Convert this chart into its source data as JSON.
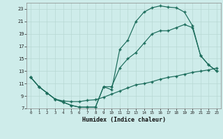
{
  "xlabel": "Humidex (Indice chaleur)",
  "bg_color": "#ceecea",
  "grid_color": "#b8d8d4",
  "line_color": "#1a6b5a",
  "xlim": [
    0,
    23
  ],
  "ylim": [
    7,
    24
  ],
  "xticks": [
    0,
    1,
    2,
    3,
    4,
    5,
    6,
    7,
    8,
    9,
    10,
    11,
    12,
    13,
    14,
    15,
    16,
    17,
    18,
    19,
    20,
    21,
    22,
    23
  ],
  "yticks": [
    7,
    9,
    11,
    13,
    15,
    17,
    19,
    21,
    23
  ],
  "line1_x": [
    0,
    1,
    2,
    3,
    4,
    5,
    6,
    7,
    8,
    9,
    10,
    11,
    12,
    13,
    14,
    15,
    16,
    17,
    18,
    19,
    20,
    21,
    22,
    23
  ],
  "line1_y": [
    12,
    10.5,
    9.5,
    8.5,
    8.0,
    7.5,
    7.2,
    7.2,
    7.2,
    10.5,
    10.0,
    16.5,
    18.0,
    21.0,
    22.5,
    23.2,
    23.5,
    23.3,
    23.2,
    22.5,
    20.3,
    15.5,
    14.0,
    13.0
  ],
  "line2_x": [
    0,
    1,
    2,
    3,
    4,
    5,
    6,
    7,
    8,
    9,
    10,
    11,
    12,
    13,
    14,
    15,
    16,
    17,
    18,
    19,
    20,
    21,
    22,
    23
  ],
  "line2_y": [
    12,
    10.5,
    9.5,
    8.5,
    8.0,
    7.5,
    7.2,
    7.2,
    7.2,
    10.5,
    10.5,
    13.5,
    15.0,
    16.0,
    17.5,
    19.0,
    19.5,
    19.5,
    20.0,
    20.5,
    20.0,
    15.5,
    14.0,
    13.0
  ],
  "line3_x": [
    0,
    1,
    2,
    3,
    4,
    5,
    6,
    7,
    8,
    9,
    10,
    11,
    12,
    13,
    14,
    15,
    16,
    17,
    18,
    19,
    20,
    21,
    22,
    23
  ],
  "line3_y": [
    12,
    10.5,
    9.5,
    8.5,
    8.2,
    8.1,
    8.1,
    8.3,
    8.4,
    8.8,
    9.3,
    9.8,
    10.3,
    10.8,
    11.0,
    11.3,
    11.7,
    12.0,
    12.2,
    12.5,
    12.8,
    13.0,
    13.2,
    13.5
  ]
}
